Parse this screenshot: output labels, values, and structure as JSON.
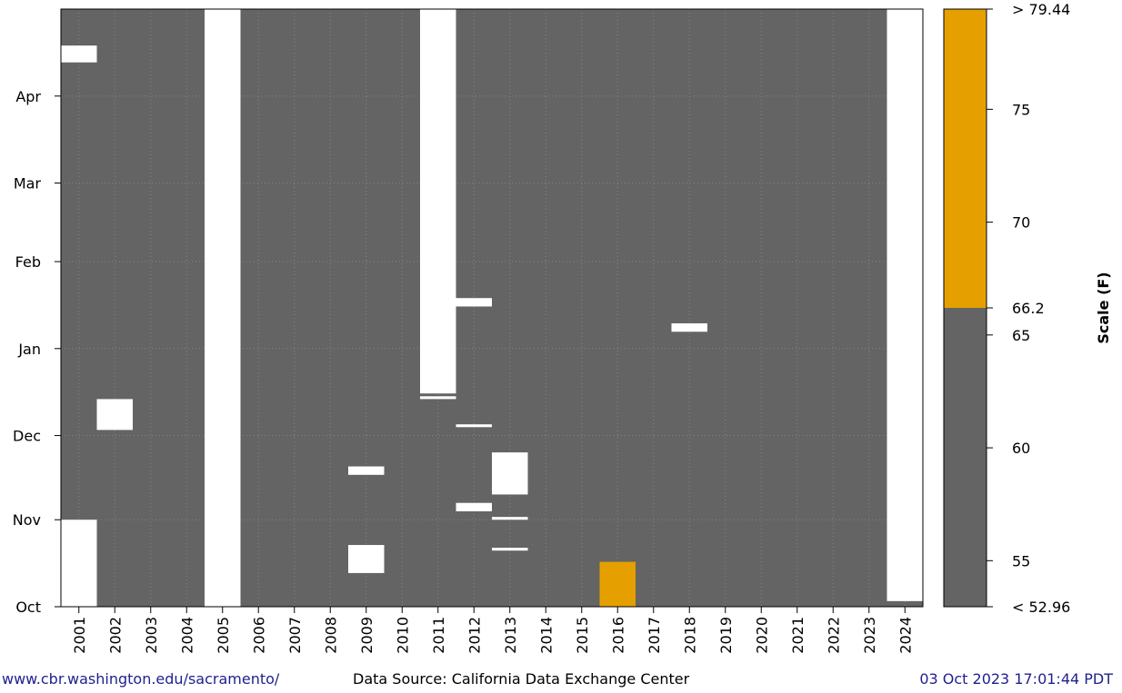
{
  "chart_data": {
    "type": "heatmap",
    "x_categories": [
      "2001",
      "2002",
      "2003",
      "2004",
      "2005",
      "2006",
      "2007",
      "2008",
      "2009",
      "2010",
      "2011",
      "2012",
      "2013",
      "2014",
      "2015",
      "2016",
      "2017",
      "2018",
      "2019",
      "2020",
      "2021",
      "2022",
      "2023",
      "2024"
    ],
    "y_tick_labels": [
      "Oct",
      "Nov",
      "Dec",
      "Jan",
      "Feb",
      "Mar",
      "Apr"
    ],
    "y_tick_days": [
      0,
      31,
      61,
      92,
      123,
      151,
      182
    ],
    "y_range_days": [
      0,
      213
    ],
    "grid": true,
    "base_color": "#646464",
    "cells": [
      {
        "year": "2001",
        "start_day": 0,
        "end_day": 31,
        "color": "#ffffff"
      },
      {
        "year": "2001",
        "start_day": 194,
        "end_day": 200,
        "color": "#ffffff"
      },
      {
        "year": "2002",
        "start_day": 63,
        "end_day": 74,
        "color": "#ffffff"
      },
      {
        "year": "2005",
        "start_day": 0,
        "end_day": 213,
        "color": "#ffffff"
      },
      {
        "year": "2009",
        "start_day": 12,
        "end_day": 22,
        "color": "#ffffff"
      },
      {
        "year": "2009",
        "start_day": 47,
        "end_day": 50,
        "color": "#ffffff"
      },
      {
        "year": "2011",
        "start_day": 74,
        "end_day": 75,
        "color": "#ffffff"
      },
      {
        "year": "2011",
        "start_day": 76,
        "end_day": 213,
        "color": "#ffffff"
      },
      {
        "year": "2012",
        "start_day": 34,
        "end_day": 37,
        "color": "#ffffff"
      },
      {
        "year": "2012",
        "start_day": 64,
        "end_day": 65,
        "color": "#ffffff"
      },
      {
        "year": "2012",
        "start_day": 107,
        "end_day": 110,
        "color": "#ffffff"
      },
      {
        "year": "2013",
        "start_day": 20,
        "end_day": 21,
        "color": "#ffffff"
      },
      {
        "year": "2013",
        "start_day": 31,
        "end_day": 32,
        "color": "#ffffff"
      },
      {
        "year": "2013",
        "start_day": 40,
        "end_day": 55,
        "color": "#ffffff"
      },
      {
        "year": "2016",
        "start_day": 0,
        "end_day": 16,
        "color": "#e5a000"
      },
      {
        "year": "2018",
        "start_day": 98,
        "end_day": 101,
        "color": "#ffffff"
      },
      {
        "year": "2024",
        "start_day": 2,
        "end_day": 213,
        "color": "#ffffff"
      }
    ],
    "colorbar": {
      "label": "Scale (F)",
      "min_label": "< 52.96",
      "max_label": "> 79.44",
      "min_value": 52.96,
      "max_value": 79.44,
      "threshold": 66.2,
      "ticks": [
        "55",
        "60",
        "65",
        "66.2",
        "70",
        "75"
      ],
      "tick_values": [
        55,
        60,
        65,
        66.2,
        70,
        75
      ],
      "low_color": "#646464",
      "high_color": "#e5a000"
    }
  },
  "footer": {
    "url": "www.cbr.washington.edu/sacramento/",
    "source": "Data Source: California Data Exchange Center",
    "timestamp": "03 Oct 2023 17:01:44 PDT"
  }
}
